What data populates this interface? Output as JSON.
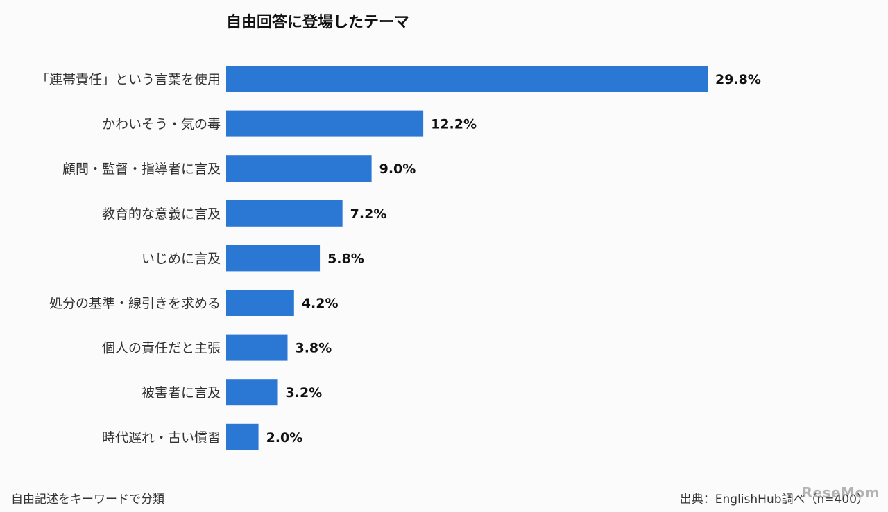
{
  "chart_data": {
    "type": "bar",
    "orientation": "horizontal",
    "title": "自由回答に登場したテーマ",
    "categories": [
      "「連帯責任」という言葉を使用",
      "かわいそう・気の毒",
      "顧問・監督・指導者に言及",
      "教育的な意義に言及",
      "いじめに言及",
      "処分の基準・線引きを求める",
      "個人の責任だと主張",
      "被害者に言及",
      "時代遅れ・古い慣習"
    ],
    "values": [
      29.8,
      12.2,
      9.0,
      7.2,
      5.8,
      4.2,
      3.8,
      3.2,
      2.0
    ],
    "value_labels": [
      "29.8%",
      "12.2%",
      "9.0%",
      "7.2%",
      "5.8%",
      "4.2%",
      "3.8%",
      "3.2%",
      "2.0%"
    ],
    "xlim": [
      0,
      29.8
    ],
    "grid": false,
    "bar_color": "#2b78d4"
  },
  "footnote": "自由記述をキーワードで分類",
  "source": "出典：EnglishHub調べ（n=400）",
  "watermark": "ReseMom"
}
